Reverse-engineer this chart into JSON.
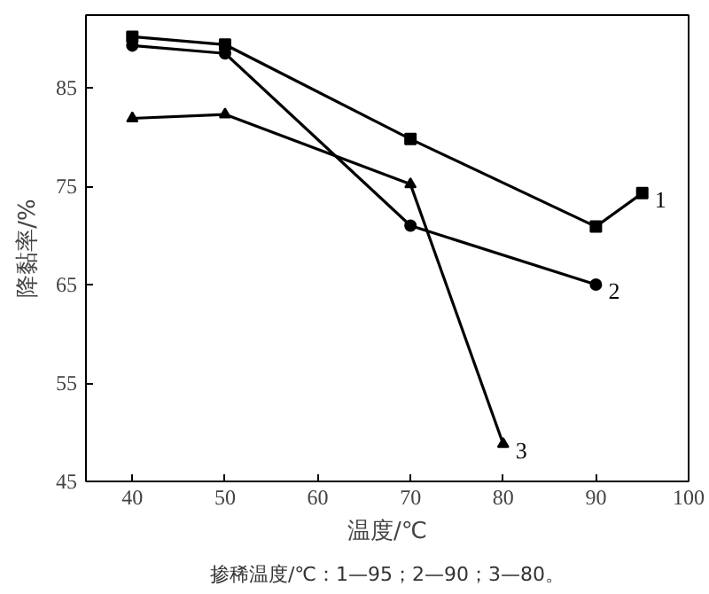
{
  "chart_data": {
    "type": "line",
    "xlabel": "温度/℃",
    "ylabel": "降黏率/%",
    "annotations": [
      "掺稀温度/℃：1—95；2—90；3—80。"
    ],
    "xlim": [
      35,
      100
    ],
    "ylim": [
      45,
      92.4
    ],
    "xticks": [
      40,
      50,
      60,
      70,
      80,
      90,
      100
    ],
    "yticks": [
      45,
      55,
      65,
      75,
      85
    ],
    "grid": false,
    "line_style": "solid",
    "series": [
      {
        "name": "1",
        "color": "#000000",
        "marker": "square",
        "x": [
          40,
          50,
          70,
          90,
          95
        ],
        "values": [
          90.2,
          89.4,
          79.8,
          70.9,
          74.3
        ]
      },
      {
        "name": "2",
        "color": "#000000",
        "marker": "circle",
        "x": [
          40,
          50,
          70,
          90
        ],
        "values": [
          89.3,
          88.5,
          71.0,
          65
        ]
      },
      {
        "name": "3",
        "color": "#000000",
        "marker": "triangle",
        "x": [
          40,
          50,
          70,
          80
        ],
        "values": [
          81.9,
          82.3,
          75.2,
          48.8
        ]
      }
    ]
  }
}
